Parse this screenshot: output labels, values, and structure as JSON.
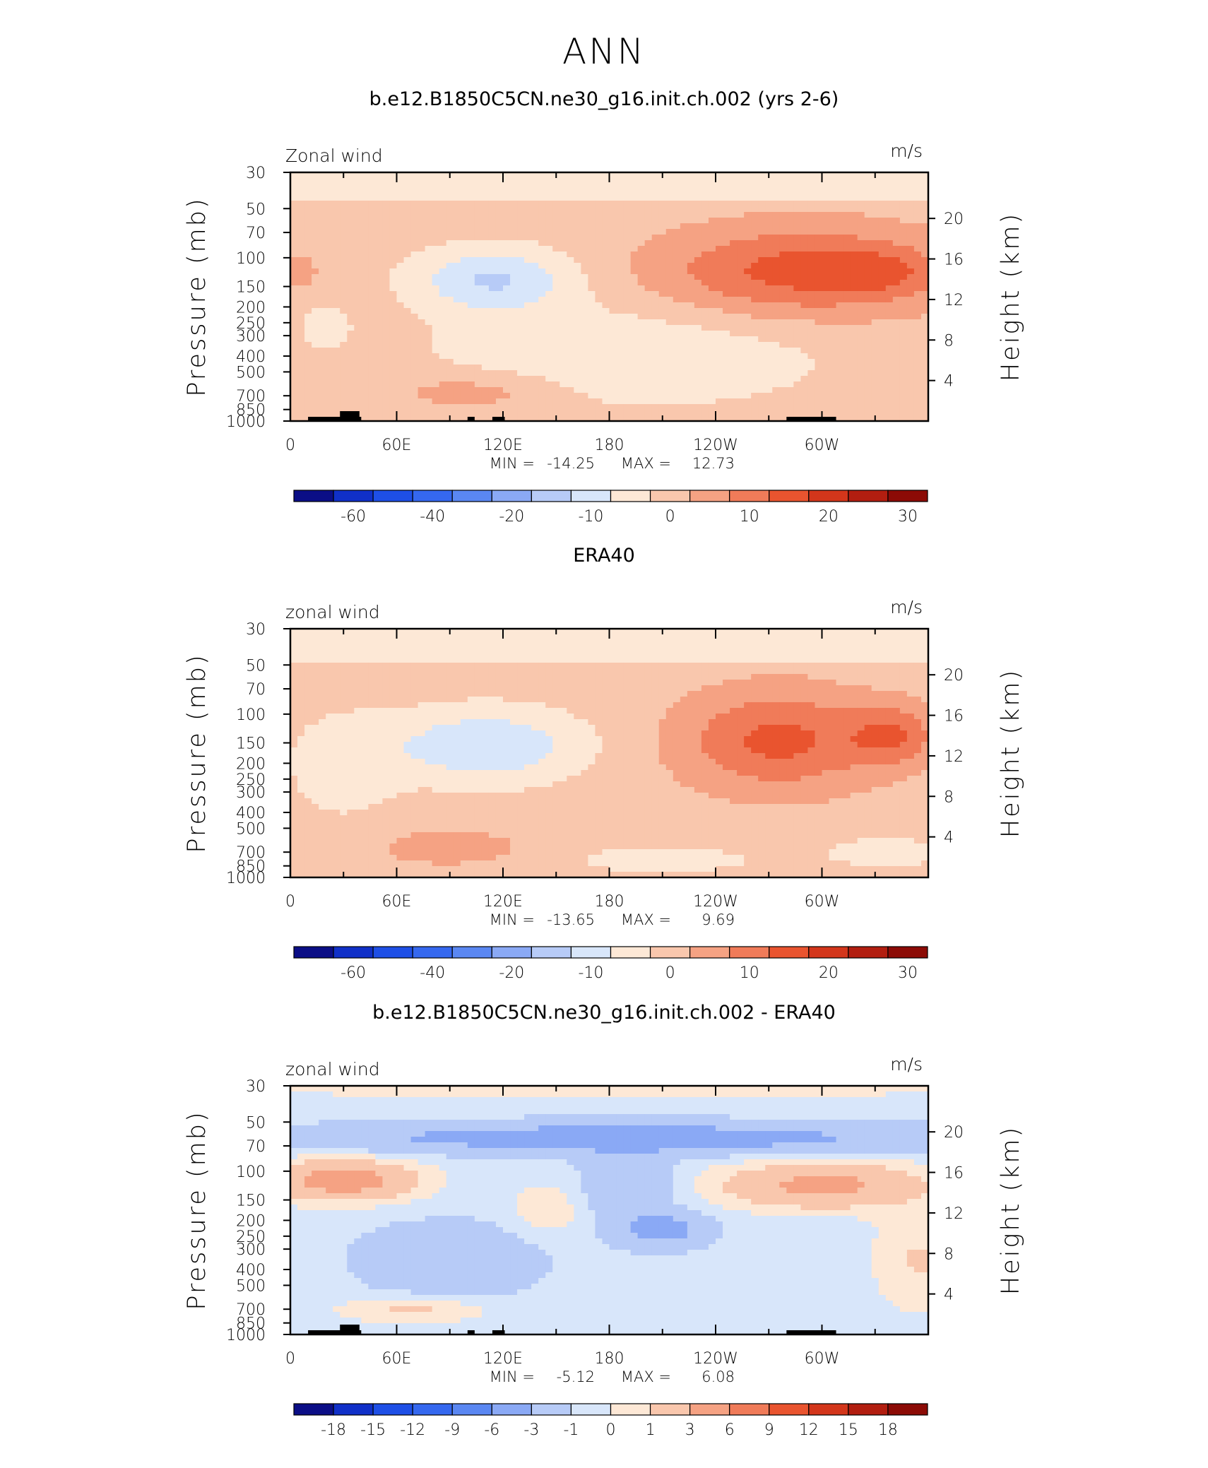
{
  "figure": {
    "title": "ANN"
  },
  "colors": {
    "neg": [
      "#0b0e86",
      "#1030c8",
      "#1e4fe6",
      "#3568ef",
      "#5a87f2",
      "#8aa9f5",
      "#b7cbf7",
      "#d8e6fa"
    ],
    "pos": [
      "#fde8d6",
      "#f9c7ad",
      "#f5a283",
      "#f07b59",
      "#e9542f",
      "#d3361b",
      "#b21e10",
      "#8c0b06"
    ],
    "land": "#000000"
  },
  "chart_data": [
    {
      "type": "heatmap",
      "title": "b.e12.B1850C5CN.ne30_g16.init.ch.002 (yrs 2-6)",
      "left_label": "Zonal wind",
      "right_label": "m/s",
      "ylabel": "Pressure (mb)",
      "ylabel_right": "Height (km)",
      "xticks": [
        "0",
        "60E",
        "120E",
        "180",
        "120W",
        "60W"
      ],
      "yticks": [
        "30",
        "50",
        "70",
        "100",
        "150",
        "200",
        "250",
        "300",
        "400",
        "500",
        "700",
        "850",
        "1000"
      ],
      "yticks_right": [
        "20",
        "16",
        "12",
        "8",
        "4"
      ],
      "stats": {
        "min_label": "MIN =",
        "min": "-14.25",
        "max_label": "MAX =",
        "max": "12.73"
      },
      "colorbar_labels": [
        "-60",
        "-40",
        "-20",
        "-10",
        "0",
        "10",
        "20",
        "30"
      ],
      "field": "model"
    },
    {
      "type": "heatmap",
      "title": "ERA40",
      "left_label": "zonal wind",
      "right_label": "m/s",
      "ylabel": "Pressure (mb)",
      "ylabel_right": "Height (km)",
      "xticks": [
        "0",
        "60E",
        "120E",
        "180",
        "120W",
        "60W"
      ],
      "yticks": [
        "30",
        "50",
        "70",
        "100",
        "150",
        "200",
        "250",
        "300",
        "400",
        "500",
        "700",
        "850",
        "1000"
      ],
      "yticks_right": [
        "20",
        "16",
        "12",
        "8",
        "4"
      ],
      "stats": {
        "min_label": "MIN =",
        "min": "-13.65",
        "max_label": "MAX =",
        "max": "9.69"
      },
      "colorbar_labels": [
        "-60",
        "-40",
        "-20",
        "-10",
        "0",
        "10",
        "20",
        "30"
      ],
      "field": "obs"
    },
    {
      "type": "heatmap",
      "title": "b.e12.B1850C5CN.ne30_g16.init.ch.002 - ERA40",
      "left_label": "zonal wind",
      "right_label": "m/s",
      "ylabel": "Pressure (mb)",
      "ylabel_right": "Height (km)",
      "xticks": [
        "0",
        "60E",
        "120E",
        "180",
        "120W",
        "60W"
      ],
      "yticks": [
        "30",
        "50",
        "70",
        "100",
        "150",
        "200",
        "250",
        "300",
        "400",
        "500",
        "700",
        "850",
        "1000"
      ],
      "yticks_right": [
        "20",
        "16",
        "12",
        "8",
        "4"
      ],
      "stats": {
        "min_label": "MIN =",
        "min": "-5.12",
        "max_label": "MAX =",
        "max": "6.08"
      },
      "colorbar_labels": [
        "-18",
        "-15",
        "-12",
        "-9",
        "-6",
        "-3",
        "-1",
        "0",
        "1",
        "3",
        "6",
        "9",
        "12",
        "15",
        "18"
      ],
      "field": "diff"
    }
  ]
}
